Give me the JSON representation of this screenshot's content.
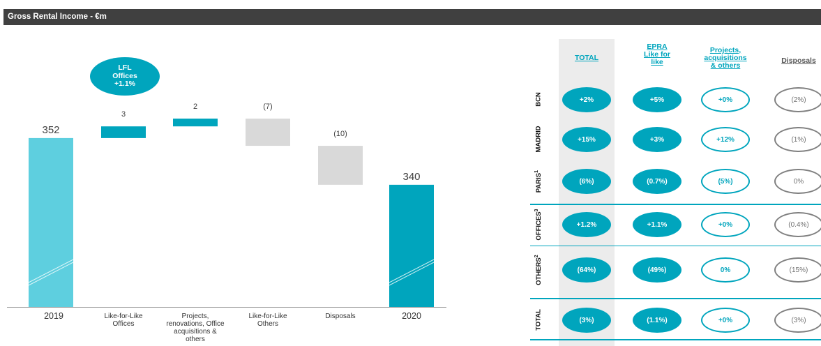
{
  "header": {
    "title": "Gross Rental Income - €m"
  },
  "bubble": {
    "line1": "LFL",
    "line2": "Offices",
    "line3": "+1.1%"
  },
  "chart_data": {
    "type": "bar",
    "subtype": "waterfall",
    "title": "Gross Rental Income - €m",
    "categories": [
      "2019",
      "Like-for-Like Offices",
      "Projects, renovations, Office acquisitions & others",
      "Like-for-Like Others",
      "Disposals",
      "2020"
    ],
    "values": [
      352,
      3,
      2,
      -7,
      -10,
      340
    ],
    "value_labels": [
      "352",
      "3",
      "2",
      "(7)",
      "(10)",
      "340"
    ],
    "measure": [
      "total",
      "relative",
      "relative",
      "relative",
      "relative",
      "total"
    ],
    "ylim": [
      250,
      380
    ],
    "colors": {
      "2019": "#5ecfdf",
      "increase": "#00a5bd",
      "decrease": "#d9d9d9",
      "2020": "#00a5bd"
    }
  },
  "table": {
    "columns": [
      "TOTAL",
      "EPRA Like for like",
      "Projects, acquisitions & others",
      "Disposals"
    ],
    "rows": [
      {
        "label": "BCN",
        "sup": "",
        "values": [
          "+2%",
          "+5%",
          "+0%",
          "(2%)"
        ]
      },
      {
        "label": "MADRID",
        "sup": "",
        "values": [
          "+15%",
          "+3%",
          "+12%",
          "(1%)"
        ]
      },
      {
        "label": "PARIS",
        "sup": "1",
        "values": [
          "(6%)",
          "(0.7%)",
          "(5%)",
          "0%"
        ]
      },
      {
        "label": "OFFICES",
        "sup": "3",
        "values": [
          "+1.2%",
          "+1.1%",
          "+0%",
          "(0.4%)"
        ]
      },
      {
        "label": "OTHERS",
        "sup": "2",
        "values": [
          "(64%)",
          "(49%)",
          "0%",
          "(15%)"
        ]
      },
      {
        "label": "TOTAL",
        "sup": "",
        "values": [
          "(3%)",
          "(1.1%)",
          "+0%",
          "(3%)"
        ]
      }
    ]
  }
}
